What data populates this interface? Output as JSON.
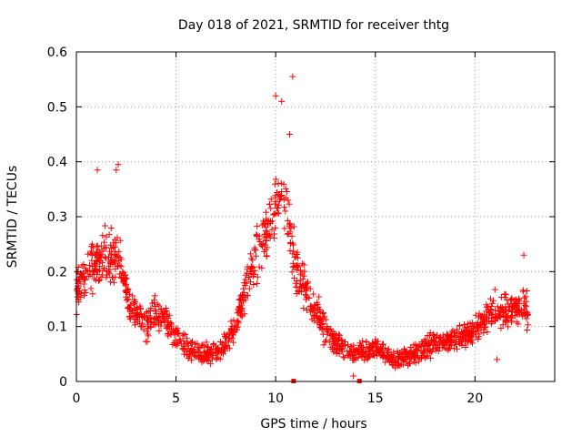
{
  "chart_data": {
    "type": "scatter",
    "title": "Day 018 of 2021, SRMTID for receiver thtg",
    "xlabel": "GPS time / hours",
    "ylabel": "SRMTID / TECUs",
    "xlim": [
      0,
      24
    ],
    "ylim": [
      0,
      0.6
    ],
    "xticks": [
      0,
      5,
      10,
      15,
      20
    ],
    "yticks": [
      0,
      0.1,
      0.2,
      0.3,
      0.4,
      0.5,
      0.6
    ],
    "ytick_labels": [
      "0",
      "0.1",
      "0.2",
      "0.3",
      "0.4",
      "0.5",
      "0.6"
    ],
    "grid": true,
    "marker": "plus",
    "color": "#ff0000",
    "trend_profile": [
      [
        0.0,
        0.17
      ],
      [
        0.5,
        0.19
      ],
      [
        1.0,
        0.22
      ],
      [
        1.5,
        0.23
      ],
      [
        2.0,
        0.23
      ],
      [
        2.3,
        0.2
      ],
      [
        2.7,
        0.13
      ],
      [
        3.5,
        0.1
      ],
      [
        4.0,
        0.13
      ],
      [
        4.5,
        0.11
      ],
      [
        5.0,
        0.08
      ],
      [
        6.0,
        0.05
      ],
      [
        7.0,
        0.05
      ],
      [
        7.5,
        0.07
      ],
      [
        8.0,
        0.1
      ],
      [
        8.5,
        0.17
      ],
      [
        9.0,
        0.23
      ],
      [
        9.5,
        0.26
      ],
      [
        10.0,
        0.31
      ],
      [
        10.3,
        0.34
      ],
      [
        10.6,
        0.3
      ],
      [
        11.0,
        0.2
      ],
      [
        11.5,
        0.17
      ],
      [
        12.0,
        0.13
      ],
      [
        12.5,
        0.09
      ],
      [
        13.0,
        0.07
      ],
      [
        13.5,
        0.06
      ],
      [
        14.0,
        0.05
      ],
      [
        15.0,
        0.06
      ],
      [
        16.0,
        0.04
      ],
      [
        17.0,
        0.05
      ],
      [
        18.0,
        0.07
      ],
      [
        19.0,
        0.08
      ],
      [
        20.0,
        0.09
      ],
      [
        21.0,
        0.13
      ],
      [
        22.0,
        0.13
      ],
      [
        22.7,
        0.13
      ]
    ],
    "notable_points": [
      [
        10.85,
        0.555
      ],
      [
        10.0,
        0.52
      ],
      [
        10.3,
        0.51
      ],
      [
        10.7,
        0.45
      ],
      [
        2.1,
        0.395
      ],
      [
        1.05,
        0.385
      ],
      [
        2.0,
        0.385
      ],
      [
        22.45,
        0.23
      ],
      [
        21.1,
        0.04
      ],
      [
        13.9,
        0.01
      ]
    ],
    "zero_markers": [
      10.9,
      14.2
    ]
  }
}
